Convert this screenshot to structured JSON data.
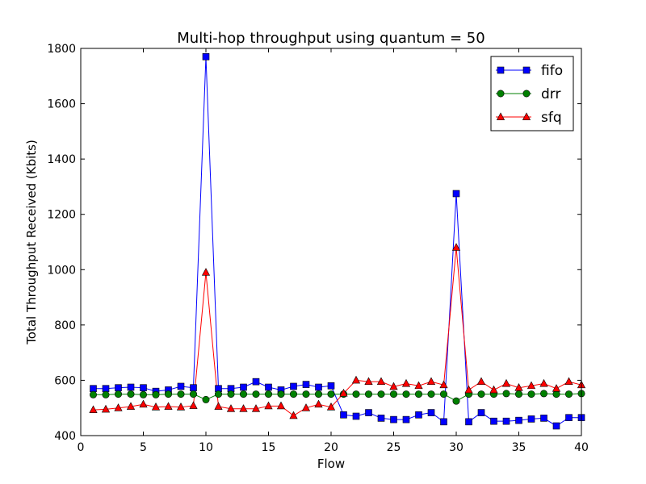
{
  "chart_data": {
    "type": "line",
    "title": "Multi-hop throughput using quantum = 50",
    "xlabel": "Flow",
    "ylabel": "Total Throughput Received (Kbits)",
    "xlim": [
      0,
      40
    ],
    "ylim": [
      400,
      1800
    ],
    "xticks": [
      0,
      5,
      10,
      15,
      20,
      25,
      30,
      35,
      40
    ],
    "yticks": [
      400,
      600,
      800,
      1000,
      1200,
      1400,
      1600,
      1800
    ],
    "grid": false,
    "legend_position": "top-right",
    "x": [
      1,
      2,
      3,
      4,
      5,
      6,
      7,
      8,
      9,
      10,
      11,
      12,
      13,
      14,
      15,
      16,
      17,
      18,
      19,
      20,
      21,
      22,
      23,
      24,
      25,
      26,
      27,
      28,
      29,
      30,
      31,
      32,
      33,
      34,
      35,
      36,
      37,
      38,
      39,
      40
    ],
    "series": [
      {
        "name": "fifo",
        "color": "#0000ff",
        "marker": "square",
        "values": [
          570,
          570,
          573,
          575,
          573,
          560,
          565,
          578,
          573,
          1770,
          570,
          570,
          575,
          595,
          575,
          565,
          578,
          585,
          575,
          580,
          475,
          470,
          483,
          463,
          458,
          458,
          475,
          483,
          450,
          1275,
          450,
          483,
          452,
          452,
          455,
          460,
          463,
          435,
          465,
          465
        ]
      },
      {
        "name": "drr",
        "color": "#008000",
        "marker": "circle",
        "values": [
          548,
          548,
          550,
          550,
          548,
          548,
          550,
          550,
          550,
          530,
          550,
          550,
          550,
          550,
          550,
          550,
          550,
          550,
          550,
          550,
          550,
          550,
          550,
          550,
          550,
          550,
          550,
          550,
          550,
          525,
          550,
          550,
          550,
          552,
          550,
          550,
          552,
          550,
          550,
          552
        ]
      },
      {
        "name": "sfq",
        "color": "#ff0000",
        "marker": "triangle",
        "values": [
          493,
          495,
          500,
          505,
          513,
          503,
          505,
          503,
          508,
          990,
          505,
          497,
          497,
          497,
          507,
          507,
          472,
          500,
          513,
          503,
          553,
          600,
          595,
          595,
          577,
          588,
          580,
          595,
          583,
          1080,
          565,
          595,
          565,
          588,
          573,
          580,
          588,
          570,
          595,
          583
        ]
      }
    ]
  }
}
